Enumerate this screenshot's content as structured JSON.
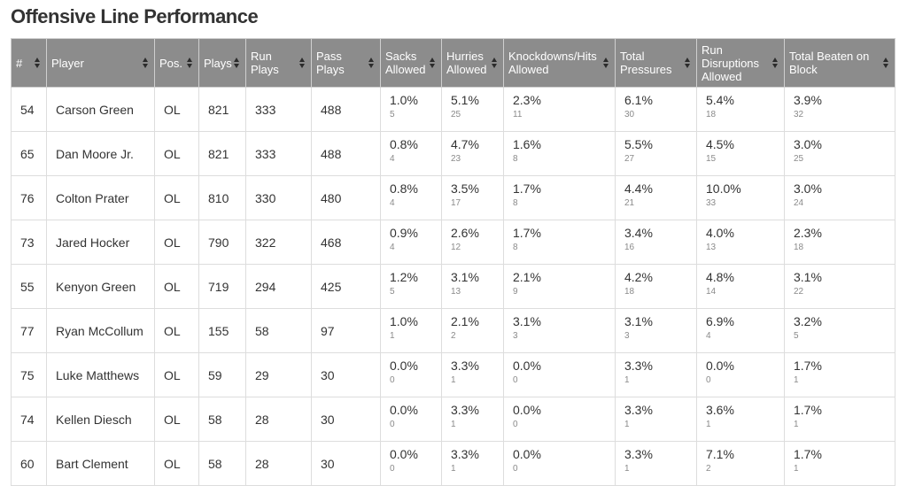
{
  "page": {
    "title": "Offensive Line Performance"
  },
  "table": {
    "columns": [
      "#",
      "Player",
      "Pos.",
      "Plays",
      "Run Plays",
      "Pass Plays",
      "Sacks Allowed",
      "Hurries Allowed",
      "Knockdowns/Hits Allowed",
      "Total Pressures",
      "Run Disruptions Allowed",
      "Total Beaten on Block"
    ],
    "rows": [
      {
        "num": "54",
        "player": "Carson Green",
        "pos": "OL",
        "plays": "821",
        "run_plays": "333",
        "pass_plays": "488",
        "sacks": {
          "pct": "1.0%",
          "count": "5"
        },
        "hurries": {
          "pct": "5.1%",
          "count": "25"
        },
        "knockdowns": {
          "pct": "2.3%",
          "count": "11"
        },
        "pressures": {
          "pct": "6.1%",
          "count": "30"
        },
        "run_disruptions": {
          "pct": "5.4%",
          "count": "18"
        },
        "beaten": {
          "pct": "3.9%",
          "count": "32"
        }
      },
      {
        "num": "65",
        "player": "Dan Moore Jr.",
        "pos": "OL",
        "plays": "821",
        "run_plays": "333",
        "pass_plays": "488",
        "sacks": {
          "pct": "0.8%",
          "count": "4"
        },
        "hurries": {
          "pct": "4.7%",
          "count": "23"
        },
        "knockdowns": {
          "pct": "1.6%",
          "count": "8"
        },
        "pressures": {
          "pct": "5.5%",
          "count": "27"
        },
        "run_disruptions": {
          "pct": "4.5%",
          "count": "15"
        },
        "beaten": {
          "pct": "3.0%",
          "count": "25"
        }
      },
      {
        "num": "76",
        "player": "Colton Prater",
        "pos": "OL",
        "plays": "810",
        "run_plays": "330",
        "pass_plays": "480",
        "sacks": {
          "pct": "0.8%",
          "count": "4"
        },
        "hurries": {
          "pct": "3.5%",
          "count": "17"
        },
        "knockdowns": {
          "pct": "1.7%",
          "count": "8"
        },
        "pressures": {
          "pct": "4.4%",
          "count": "21"
        },
        "run_disruptions": {
          "pct": "10.0%",
          "count": "33"
        },
        "beaten": {
          "pct": "3.0%",
          "count": "24"
        }
      },
      {
        "num": "73",
        "player": "Jared Hocker",
        "pos": "OL",
        "plays": "790",
        "run_plays": "322",
        "pass_plays": "468",
        "sacks": {
          "pct": "0.9%",
          "count": "4"
        },
        "hurries": {
          "pct": "2.6%",
          "count": "12"
        },
        "knockdowns": {
          "pct": "1.7%",
          "count": "8"
        },
        "pressures": {
          "pct": "3.4%",
          "count": "16"
        },
        "run_disruptions": {
          "pct": "4.0%",
          "count": "13"
        },
        "beaten": {
          "pct": "2.3%",
          "count": "18"
        }
      },
      {
        "num": "55",
        "player": "Kenyon Green",
        "pos": "OL",
        "plays": "719",
        "run_plays": "294",
        "pass_plays": "425",
        "sacks": {
          "pct": "1.2%",
          "count": "5"
        },
        "hurries": {
          "pct": "3.1%",
          "count": "13"
        },
        "knockdowns": {
          "pct": "2.1%",
          "count": "9"
        },
        "pressures": {
          "pct": "4.2%",
          "count": "18"
        },
        "run_disruptions": {
          "pct": "4.8%",
          "count": "14"
        },
        "beaten": {
          "pct": "3.1%",
          "count": "22"
        }
      },
      {
        "num": "77",
        "player": "Ryan McCollum",
        "pos": "OL",
        "plays": "155",
        "run_plays": "58",
        "pass_plays": "97",
        "sacks": {
          "pct": "1.0%",
          "count": "1"
        },
        "hurries": {
          "pct": "2.1%",
          "count": "2"
        },
        "knockdowns": {
          "pct": "3.1%",
          "count": "3"
        },
        "pressures": {
          "pct": "3.1%",
          "count": "3"
        },
        "run_disruptions": {
          "pct": "6.9%",
          "count": "4"
        },
        "beaten": {
          "pct": "3.2%",
          "count": "5"
        }
      },
      {
        "num": "75",
        "player": "Luke Matthews",
        "pos": "OL",
        "plays": "59",
        "run_plays": "29",
        "pass_plays": "30",
        "sacks": {
          "pct": "0.0%",
          "count": "0"
        },
        "hurries": {
          "pct": "3.3%",
          "count": "1"
        },
        "knockdowns": {
          "pct": "0.0%",
          "count": "0"
        },
        "pressures": {
          "pct": "3.3%",
          "count": "1"
        },
        "run_disruptions": {
          "pct": "0.0%",
          "count": "0"
        },
        "beaten": {
          "pct": "1.7%",
          "count": "1"
        }
      },
      {
        "num": "74",
        "player": "Kellen Diesch",
        "pos": "OL",
        "plays": "58",
        "run_plays": "28",
        "pass_plays": "30",
        "sacks": {
          "pct": "0.0%",
          "count": "0"
        },
        "hurries": {
          "pct": "3.3%",
          "count": "1"
        },
        "knockdowns": {
          "pct": "0.0%",
          "count": "0"
        },
        "pressures": {
          "pct": "3.3%",
          "count": "1"
        },
        "run_disruptions": {
          "pct": "3.6%",
          "count": "1"
        },
        "beaten": {
          "pct": "1.7%",
          "count": "1"
        }
      },
      {
        "num": "60",
        "player": "Bart Clement",
        "pos": "OL",
        "plays": "58",
        "run_plays": "28",
        "pass_plays": "30",
        "sacks": {
          "pct": "0.0%",
          "count": "0"
        },
        "hurries": {
          "pct": "3.3%",
          "count": "1"
        },
        "knockdowns": {
          "pct": "0.0%",
          "count": "0"
        },
        "pressures": {
          "pct": "3.3%",
          "count": "1"
        },
        "run_disruptions": {
          "pct": "7.1%",
          "count": "2"
        },
        "beaten": {
          "pct": "1.7%",
          "count": "1"
        }
      }
    ]
  }
}
